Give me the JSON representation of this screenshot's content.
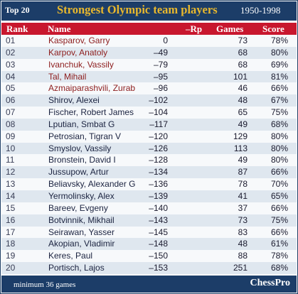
{
  "header": {
    "badge": "Top 20",
    "title": "Strongest Olympic team players",
    "years": "1950-1998"
  },
  "columns": {
    "rank": "Rank",
    "name": "Name",
    "rp": "–Rp",
    "games": "Games",
    "score": "Score"
  },
  "colors": {
    "title_bar": "#1c3d68",
    "title_text": "#e9b82d",
    "column_header": "#c8172e",
    "name_red": "#8d1d1d",
    "name_blue": "#1b2340",
    "row_shade": "#dfe7ef"
  },
  "rows": [
    {
      "rank": "01",
      "name": "Kasparov, Garry",
      "rp": "0",
      "games": "73",
      "score": "78%",
      "color": "red"
    },
    {
      "rank": "02",
      "name": "Karpov, Anatoly",
      "rp": "–49",
      "games": "68",
      "score": "80%",
      "color": "red"
    },
    {
      "rank": "03",
      "name": "Ivanchuk, Vassily",
      "rp": "–79",
      "games": "68",
      "score": "69%",
      "color": "red"
    },
    {
      "rank": "04",
      "name": "Tal, Mihail",
      "rp": "–95",
      "games": "101",
      "score": "81%",
      "color": "red"
    },
    {
      "rank": "05",
      "name": "Azmaiparashvili, Zurab",
      "rp": "–96",
      "games": "46",
      "score": "66%",
      "color": "red"
    },
    {
      "rank": "06",
      "name": "Shirov, Alexei",
      "rp": "–102",
      "games": "48",
      "score": "67%",
      "color": "blue"
    },
    {
      "rank": "07",
      "name": "Fischer, Robert James",
      "rp": "–104",
      "games": "65",
      "score": "75%",
      "color": "blue"
    },
    {
      "rank": "08",
      "name": "Lputian, Smbat G",
      "rp": "–117",
      "games": "49",
      "score": "68%",
      "color": "blue"
    },
    {
      "rank": "09",
      "name": "Petrosian, Tigran V",
      "rp": "–120",
      "games": "129",
      "score": "80%",
      "color": "blue"
    },
    {
      "rank": "10",
      "name": "Smyslov, Vassily",
      "rp": "–126",
      "games": "113",
      "score": "80%",
      "color": "blue"
    },
    {
      "rank": "11",
      "name": "Bronstein, David I",
      "rp": "–128",
      "games": "49",
      "score": "80%",
      "color": "blue"
    },
    {
      "rank": "12",
      "name": "Jussupow, Artur",
      "rp": "–134",
      "games": "87",
      "score": "66%",
      "color": "blue"
    },
    {
      "rank": "13",
      "name": "Beliavsky, Alexander G",
      "rp": "–136",
      "games": "78",
      "score": "70%",
      "color": "blue"
    },
    {
      "rank": "14",
      "name": "Yermolinsky, Alex",
      "rp": "–139",
      "games": "41",
      "score": "65%",
      "color": "blue"
    },
    {
      "rank": "15",
      "name": "Bareev, Evgeny",
      "rp": "–140",
      "games": "37",
      "score": "66%",
      "color": "blue"
    },
    {
      "rank": "16",
      "name": "Botvinnik, Mikhail",
      "rp": "–143",
      "games": "73",
      "score": "75%",
      "color": "blue"
    },
    {
      "rank": "17",
      "name": "Seirawan, Yasser",
      "rp": "–145",
      "games": "83",
      "score": "66%",
      "color": "blue"
    },
    {
      "rank": "18",
      "name": "Akopian, Vladimir",
      "rp": "–148",
      "games": "48",
      "score": "61%",
      "color": "blue"
    },
    {
      "rank": "19",
      "name": "Keres, Paul",
      "rp": "–150",
      "games": "88",
      "score": "78%",
      "color": "blue"
    },
    {
      "rank": "20",
      "name": "Portisch, Lajos",
      "rp": "–153",
      "games": "251",
      "score": "68%",
      "color": "blue"
    }
  ],
  "footer": {
    "note": "minimum 36 games",
    "brand": "ChessPro"
  }
}
